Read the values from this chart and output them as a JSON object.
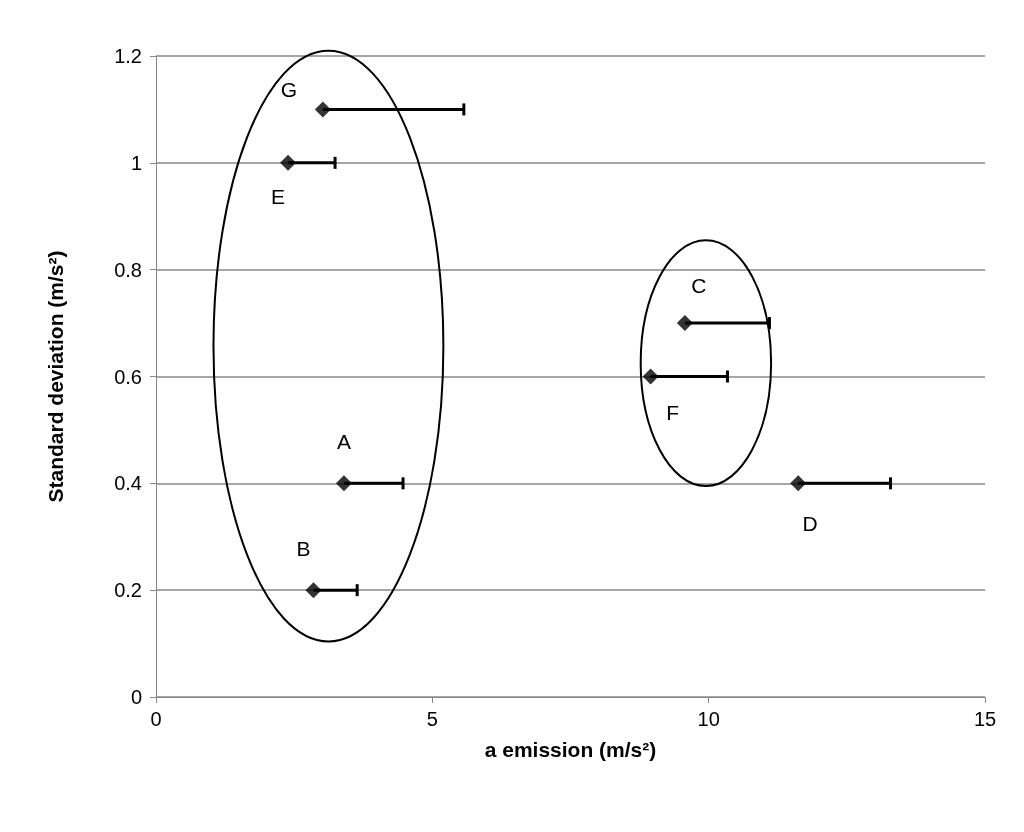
{
  "chart_data": {
    "type": "scatter",
    "xlabel": "a emission (m/s²)",
    "ylabel": "Standard deviation (m/s²)",
    "x": [
      3.4,
      2.85,
      9.57,
      11.62,
      2.39,
      8.95,
      3.02
    ],
    "values": [
      0.4,
      0.2,
      0.7,
      0.4,
      1.0,
      0.6,
      1.1
    ],
    "xerrors": [
      [
        3.4,
        4.47
      ],
      [
        2.85,
        3.64
      ],
      [
        9.57,
        11.1
      ],
      [
        11.62,
        13.29
      ],
      [
        2.39,
        3.24
      ],
      [
        8.95,
        10.34
      ],
      [
        3.02,
        5.57
      ]
    ],
    "color": "#000000",
    "marker": "diamond",
    "xlim": [
      0,
      15
    ],
    "xticks": [
      0,
      5,
      10,
      15
    ],
    "ylim": [
      0,
      1.2
    ],
    "yticks": [
      0,
      0.2,
      0.4,
      0.6,
      0.8,
      1,
      1.2
    ],
    "grid": "y",
    "annotations": [
      {
        "text": "A",
        "x": 3.4,
        "y": 0.4
      },
      {
        "text": "B",
        "x": 2.85,
        "y": 0.2
      },
      {
        "text": "C",
        "x": 9.57,
        "y": 0.7
      },
      {
        "text": "D",
        "x": 11.62,
        "y": 0.4
      },
      {
        "text": "E",
        "x": 2.39,
        "y": 1.0
      },
      {
        "text": "F",
        "x": 8.95,
        "y": 0.6
      },
      {
        "text": "G",
        "x": 3.02,
        "y": 1.1
      }
    ]
  }
}
